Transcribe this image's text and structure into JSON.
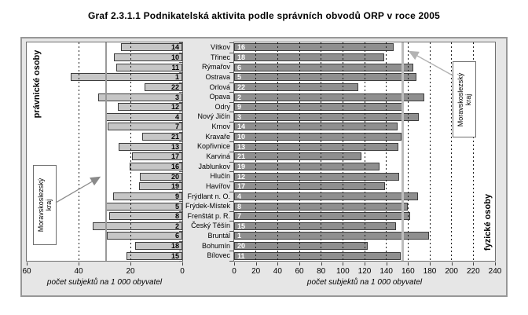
{
  "title": "Graf 2.3.1.1 Podnikatelská aktivita podle správních obvodů ORP v roce 2005",
  "panels": {
    "left_label": "právnické osoby",
    "right_label": "fyzické osoby"
  },
  "axes": {
    "left": {
      "ticks": [
        60,
        40,
        20,
        0
      ],
      "max": 60,
      "title": "počet subjektů na 1 000 obyvatel"
    },
    "right": {
      "ticks": [
        0,
        20,
        40,
        60,
        80,
        100,
        120,
        140,
        160,
        180,
        200,
        220,
        240
      ],
      "max": 240,
      "title": "počet subjektů na 1 000 obyvatel"
    }
  },
  "annotation": {
    "region_line1": "Moravskoslezský",
    "region_line2": "kraj"
  },
  "chart_data": {
    "type": "bar",
    "orientation": "horizontal bilateral (pyramid style), left axis reversed",
    "title": "Graf 2.3.1.1 Podnikatelská aktivita podle správních obvodů ORP v roce 2005",
    "xlabel": "počet subjektů na 1 000 obyvatel",
    "categories": [
      "Vítkov",
      "Třinec",
      "Rýmařov",
      "Ostrava",
      "Orlová",
      "Opava",
      "Odry",
      "Nový Jičín",
      "Krnov",
      "Kravaře",
      "Kopřivnice",
      "Karviná",
      "Jablunkov",
      "Hlučín",
      "Havířov",
      "Frýdlant n. O.",
      "Frýdek-Místek",
      "Frenštát p. R.",
      "Český Těšín",
      "Bruntál",
      "Bohumín",
      "Bílovec"
    ],
    "series": [
      {
        "name": "právnické osoby",
        "panel": "left",
        "axis_range": [
          0,
          60
        ],
        "values": [
          23.5,
          26.3,
          25.6,
          43,
          14.6,
          32.5,
          24.8,
          29.6,
          28.8,
          15.5,
          24.5,
          19.5,
          20.3,
          16.4,
          16.7,
          26.6,
          29.4,
          28.1,
          34.5,
          29.2,
          18.1,
          21.5
        ],
        "ranks": [
          14,
          10,
          11,
          1,
          22,
          3,
          12,
          4,
          7,
          21,
          13,
          17,
          16,
          20,
          19,
          9,
          5,
          8,
          2,
          6,
          18,
          15
        ]
      },
      {
        "name": "fyzické osoby",
        "panel": "right",
        "axis_range": [
          0,
          240
        ],
        "values": [
          147,
          138,
          165,
          168,
          114,
          175,
          156,
          170,
          150,
          154,
          151,
          117,
          134,
          152,
          139,
          169,
          160,
          162,
          149,
          179,
          123,
          153
        ],
        "ranks": [
          16,
          18,
          6,
          5,
          22,
          2,
          9,
          3,
          14,
          10,
          13,
          21,
          19,
          12,
          17,
          4,
          8,
          7,
          15,
          1,
          20,
          11
        ]
      }
    ],
    "reference_line": {
      "label": "Moravskoslezský kraj",
      "pravnicke_osoby": 29.3,
      "fyzicke_osoby": 155
    },
    "gridlines": "dashed vertical lines every 20 units, drawn over bars",
    "legend_position": "none"
  },
  "colors": {
    "left_bar": "#c6c6c6",
    "right_bar": "#8f8f8f",
    "frame_bg": "#e6e6e6",
    "panel_bg": "#ffffff",
    "grid": "#1c1c1c",
    "ref_line_left": "#9a9a9a",
    "ref_line_right": "#bcbcbc",
    "arrow_left": "#8a8a8a",
    "arrow_right": "#b3b3b3"
  }
}
